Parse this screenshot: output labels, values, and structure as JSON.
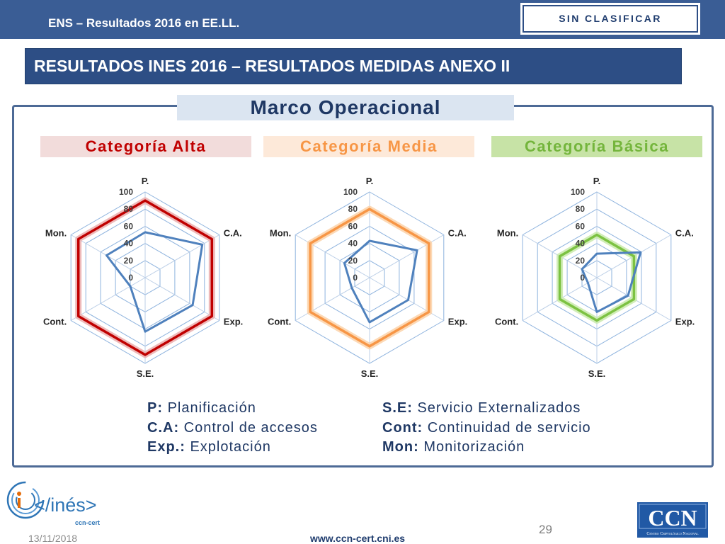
{
  "header": {
    "title": "ENS – Resultados 2016 en EE.LL.",
    "classification": "SIN CLASIFICAR"
  },
  "slide": {
    "title": "RESULTADOS INES 2016 – RESULTADOS MEDIDAS ANEXO II",
    "section": "Marco Operacional"
  },
  "chart_data": [
    {
      "type": "radar",
      "title": "Categoría Alta",
      "categories": [
        "P.",
        "C.A.",
        "Exp.",
        "S.E.",
        "Cont.",
        "Mon."
      ],
      "rlim": [
        0,
        100
      ],
      "ticks": [
        0,
        20,
        40,
        60,
        80,
        100
      ],
      "grid": true,
      "series": [
        {
          "values": [
            90,
            90,
            90,
            90,
            90,
            90
          ],
          "color": "#c00000",
          "glow_color": "#eaa9a9"
        },
        {
          "values": [
            53,
            77,
            64,
            63,
            20,
            52
          ],
          "color": "#4f81bd"
        }
      ]
    },
    {
      "type": "radar",
      "title": "Categoría Media",
      "categories": [
        "P.",
        "C.A.",
        "Exp.",
        "S.E.",
        "Cont.",
        "Mon."
      ],
      "rlim": [
        0,
        100
      ],
      "ticks": [
        0,
        20,
        40,
        60,
        80,
        100
      ],
      "grid": true,
      "series": [
        {
          "values": [
            80,
            80,
            80,
            80,
            80,
            80
          ],
          "color": "#f79646",
          "glow_color": "#fbcfa4"
        },
        {
          "values": [
            43,
            64,
            52,
            52,
            24,
            34
          ],
          "color": "#4f81bd"
        }
      ]
    },
    {
      "type": "radar",
      "title": "Categoría Básica",
      "categories": [
        "P.",
        "C.A.",
        "Exp.",
        "S.E.",
        "Cont.",
        "Mon."
      ],
      "rlim": [
        0,
        100
      ],
      "ticks": [
        0,
        20,
        40,
        60,
        80,
        100
      ],
      "grid": true,
      "series": [
        {
          "values": [
            50,
            50,
            50,
            50,
            50,
            50
          ],
          "color": "#7cc242",
          "glow_color": "#c6e8a6"
        },
        {
          "values": [
            28,
            59,
            42,
            40,
            12,
            20
          ],
          "color": "#4f81bd"
        }
      ]
    }
  ],
  "legend": {
    "left": [
      {
        "abbr": "P:",
        "desc": "Planificación"
      },
      {
        "abbr": "C.A:",
        "desc": "Control de accesos"
      },
      {
        "abbr": "Exp.:",
        "desc": "Explotación"
      }
    ],
    "right": [
      {
        "abbr": "S.E:",
        "desc": "Servicio Externalizados"
      },
      {
        "abbr": "Cont:",
        "desc": "Continuidad de servicio"
      },
      {
        "abbr": "Mon:",
        "desc": "Monitorización"
      }
    ]
  },
  "footer": {
    "date": "13/11/2018",
    "url": "www.ccn-cert.cni.es",
    "page": "29"
  },
  "logos": {
    "ines": {
      "text": "</inés>",
      "subtext": "ccn-cert"
    },
    "ccn": {
      "text": "CCN",
      "subtext": "Centro Criptológico Nacional"
    }
  }
}
